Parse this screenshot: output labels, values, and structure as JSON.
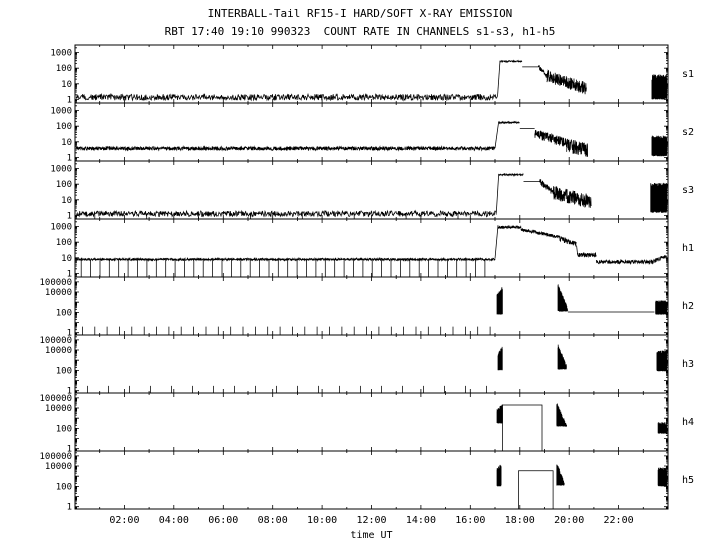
{
  "chart_data": {
    "type": "line",
    "title": "INTERBALL-Tail RF15-I HARD/SOFT X-RAY EMISSION",
    "subtitle": "RBT 17:40 19:10 990323  COUNT RATE IN CHANNELS s1-s3, h1-h5",
    "xlabel": "time UT",
    "x_range": [
      0,
      24
    ],
    "x_minor_step": 1,
    "x_major_ticks": [
      {
        "t": 2,
        "label": "02:00"
      },
      {
        "t": 4,
        "label": "04:00"
      },
      {
        "t": 6,
        "label": "06:00"
      },
      {
        "t": 8,
        "label": "08:00"
      },
      {
        "t": 10,
        "label": "10:00"
      },
      {
        "t": 12,
        "label": "12:00"
      },
      {
        "t": 14,
        "label": "14:00"
      },
      {
        "t": 16,
        "label": "16:00"
      },
      {
        "t": 18,
        "label": "18:00"
      },
      {
        "t": 20,
        "label": "20:00"
      },
      {
        "t": 22,
        "label": "22:00"
      }
    ],
    "line_color": "#000000",
    "background": "#ffffff",
    "grid": false,
    "legend": "none",
    "panels": [
      {
        "id": "s1",
        "y_range": [
          0.6,
          3000
        ],
        "y_labeled_decades": [
          0,
          1,
          2,
          3
        ],
        "segments": [
          {
            "k": "noise",
            "t": [
              0.05,
              17.1
            ],
            "v": 1.4,
            "a": 0.2,
            "dt": 0.02
          },
          {
            "k": "line",
            "t": [
              17.1,
              17.2
            ],
            "v": [
              1.5,
              300
            ]
          },
          {
            "k": "noise",
            "t": [
              17.2,
              18.1
            ],
            "v": 270,
            "a": 0.05,
            "dt": 0.01
          },
          {
            "k": "hline",
            "t": [
              18.1,
              18.75
            ],
            "v": 120
          },
          {
            "k": "nline",
            "t": [
              18.75,
              19.1
            ],
            "v": [
              120,
              30
            ],
            "a": 0.15,
            "dt": 0.01
          },
          {
            "k": "nline",
            "t": [
              19.1,
              20.7
            ],
            "v": [
              30,
              5
            ],
            "a": 0.4,
            "dt": 0.008
          },
          {
            "k": "burst",
            "t": [
              23.35,
              23.95
            ],
            "v": [
              1,
              40,
              40
            ]
          }
        ]
      },
      {
        "id": "s2",
        "y_range": [
          0.6,
          3000
        ],
        "y_labeled_decades": [
          0,
          1,
          2,
          3
        ],
        "segments": [
          {
            "k": "noise",
            "t": [
              0.05,
              17.0
            ],
            "v": 3.8,
            "a": 0.12,
            "dt": 0.01
          },
          {
            "k": "line",
            "t": [
              17.0,
              17.15
            ],
            "v": [
              4,
              200
            ]
          },
          {
            "k": "noise",
            "t": [
              17.15,
              18.0
            ],
            "v": 170,
            "a": 0.06,
            "dt": 0.01
          },
          {
            "k": "hline",
            "t": [
              18.0,
              18.6
            ],
            "v": 70
          },
          {
            "k": "nline",
            "t": [
              18.6,
              19.9
            ],
            "v": [
              35,
              8
            ],
            "a": 0.3,
            "dt": 0.008
          },
          {
            "k": "nline",
            "t": [
              19.9,
              20.75
            ],
            "v": [
              6,
              3
            ],
            "a": 0.45,
            "dt": 0.008
          },
          {
            "k": "burst",
            "t": [
              23.35,
              23.95
            ],
            "v": [
              1.2,
              25,
              25
            ]
          }
        ]
      },
      {
        "id": "s3",
        "y_range": [
          0.6,
          3000
        ],
        "y_labeled_decades": [
          0,
          1,
          2,
          3
        ],
        "segments": [
          {
            "k": "noise",
            "t": [
              0.05,
              17.05
            ],
            "v": 1.3,
            "a": 0.18,
            "dt": 0.02
          },
          {
            "k": "vlines",
            "t": [
              0.8,
              16.5
            ],
            "p": 2.1,
            "v": [
              0.1,
              1.3
            ]
          },
          {
            "k": "line",
            "t": [
              17.05,
              17.15
            ],
            "v": [
              1.5,
              450
            ]
          },
          {
            "k": "noise",
            "t": [
              17.15,
              18.15
            ],
            "v": 400,
            "a": 0.05,
            "dt": 0.01
          },
          {
            "k": "hline",
            "t": [
              18.15,
              18.8
            ],
            "v": 150
          },
          {
            "k": "nline",
            "t": [
              18.8,
              19.35
            ],
            "v": [
              150,
              30
            ],
            "a": 0.2,
            "dt": 0.008
          },
          {
            "k": "nline",
            "t": [
              19.35,
              20.9
            ],
            "v": [
              30,
              7
            ],
            "a": 0.45,
            "dt": 0.008
          },
          {
            "k": "burst",
            "t": [
              23.3,
              23.95
            ],
            "v": [
              1.5,
              120,
              120
            ]
          }
        ]
      },
      {
        "id": "h1",
        "y_range": [
          0.6,
          3000
        ],
        "y_labeled_decades": [
          0,
          1,
          2,
          3
        ],
        "segments": [
          {
            "k": "noise",
            "t": [
              0.05,
              17.0
            ],
            "v": 8,
            "a": 0.07,
            "dt": 0.01
          },
          {
            "k": "vlines",
            "t": [
              0.25,
              16.9
            ],
            "p": 0.38,
            "v": [
              0.1,
              7.5
            ]
          },
          {
            "k": "line",
            "t": [
              17.0,
              17.12
            ],
            "v": [
              9,
              1200
            ]
          },
          {
            "k": "noise",
            "t": [
              17.12,
              18.05
            ],
            "v": 900,
            "a": 0.09,
            "dt": 0.008
          },
          {
            "k": "nline",
            "t": [
              18.05,
              19.55
            ],
            "v": [
              650,
              220
            ],
            "a": 0.1,
            "dt": 0.008
          },
          {
            "k": "nline",
            "t": [
              19.55,
              20.3
            ],
            "v": [
              180,
              70
            ],
            "a": 0.18,
            "dt": 0.008
          },
          {
            "k": "line",
            "t": [
              20.3,
              20.34
            ],
            "v": [
              60,
              16
            ]
          },
          {
            "k": "noise",
            "t": [
              20.34,
              21.1
            ],
            "v": 15,
            "a": 0.13,
            "dt": 0.01
          },
          {
            "k": "noise",
            "t": [
              21.1,
              23.4
            ],
            "v": 5.5,
            "a": 0.12,
            "dt": 0.01
          },
          {
            "k": "nline",
            "t": [
              23.4,
              23.95
            ],
            "v": [
              6,
              14
            ],
            "a": 0.13,
            "dt": 0.01
          }
        ]
      },
      {
        "id": "h2",
        "y_range": [
          0.6,
          300000
        ],
        "y_labeled_decades": [
          0,
          2,
          4,
          5
        ],
        "segments": [
          {
            "k": "vlines",
            "t": [
              0.3,
              16.9
            ],
            "p": 0.5,
            "v": [
              0.1,
              4
            ]
          },
          {
            "k": "burst",
            "t": [
              17.08,
              17.3
            ],
            "v": [
              60,
              6000,
              35000
            ]
          },
          {
            "k": "burst",
            "t": [
              19.55,
              19.95
            ],
            "v": [
              120,
              60000,
              300
            ]
          },
          {
            "k": "hline",
            "t": [
              19.95,
              23.45
            ],
            "v": 110
          },
          {
            "k": "burst",
            "t": [
              23.5,
              23.95
            ],
            "v": [
              60,
              1500,
              1500
            ]
          }
        ]
      },
      {
        "id": "h3",
        "y_range": [
          0.6,
          300000
        ],
        "y_labeled_decades": [
          0,
          2,
          4,
          5
        ],
        "segments": [
          {
            "k": "vlines",
            "t": [
              0.5,
              16.9
            ],
            "p": 0.85,
            "v": [
              0.1,
              3
            ]
          },
          {
            "k": "burst",
            "t": [
              17.12,
              17.3
            ],
            "v": [
              100,
              5000,
              25000
            ]
          },
          {
            "k": "burst",
            "t": [
              19.55,
              19.9
            ],
            "v": [
              120,
              40000,
              300
            ]
          },
          {
            "k": "burst",
            "t": [
              23.55,
              23.95
            ],
            "v": [
              80,
              9000,
              9000
            ]
          }
        ]
      },
      {
        "id": "h4",
        "y_range": [
          0.6,
          300000
        ],
        "y_labeled_decades": [
          0,
          2,
          4,
          5
        ],
        "segments": [
          {
            "k": "burst",
            "t": [
              17.08,
              17.3
            ],
            "v": [
              300,
              8000,
              25000
            ]
          },
          {
            "k": "plateau",
            "t": [
              17.3,
              18.9
            ],
            "v": 20000
          },
          {
            "k": "burst",
            "t": [
              19.5,
              19.9
            ],
            "v": [
              150,
              35000,
              250
            ]
          },
          {
            "k": "burst",
            "t": [
              23.6,
              23.95
            ],
            "v": [
              30,
              400,
              400
            ]
          }
        ]
      },
      {
        "id": "h5",
        "y_range": [
          0.6,
          300000
        ],
        "y_labeled_decades": [
          0,
          2,
          4,
          5
        ],
        "segments": [
          {
            "k": "burst",
            "t": [
              17.08,
              17.25
            ],
            "v": [
              100,
              6000,
              18000
            ]
          },
          {
            "k": "plateau",
            "t": [
              17.95,
              19.35
            ],
            "v": 3500
          },
          {
            "k": "burst",
            "t": [
              19.5,
              19.8
            ],
            "v": [
              120,
              25000,
              300
            ]
          },
          {
            "k": "burst",
            "t": [
              23.6,
              23.95
            ],
            "v": [
              100,
              7000,
              7000
            ]
          }
        ]
      }
    ]
  }
}
